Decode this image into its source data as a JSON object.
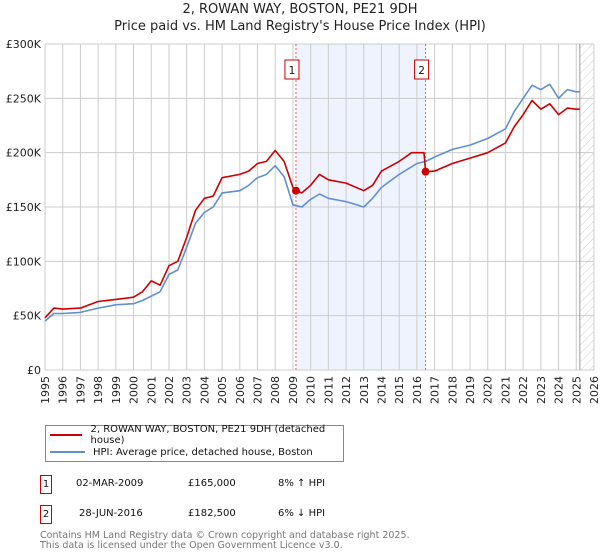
{
  "title_line1": "2, ROWAN WAY, BOSTON, PE21 9DH",
  "title_line2": "Price paid vs. HM Land Registry's House Price Index (HPI)",
  "colors": {
    "property": "#cc0000",
    "hpi": "#6090d0",
    "shade": "#eef3fd"
  },
  "legend": {
    "property": "2, ROWAN WAY, BOSTON, PE21 9DH (detached house)",
    "hpi": "HPI: Average price, detached house, Boston"
  },
  "annotations": [
    {
      "num": "1",
      "date": "02-MAR-2009",
      "price": "£165,000",
      "hpi": "8% ↑ HPI"
    },
    {
      "num": "2",
      "date": "28-JUN-2016",
      "price": "£182,500",
      "hpi": "6% ↓ HPI"
    }
  ],
  "footer": {
    "line1": "Contains HM Land Registry data © Crown copyright and database right 2025.",
    "line2": "This data is licensed under the Open Government Licence v3.0."
  },
  "chart_data": {
    "type": "line",
    "xlim": [
      1995,
      2026
    ],
    "ylim": [
      0,
      300000
    ],
    "yticks": [
      0,
      50000,
      100000,
      150000,
      200000,
      250000,
      300000
    ],
    "ytick_labels": [
      "£0",
      "£50K",
      "£100K",
      "£150K",
      "£200K",
      "£250K",
      "£300K"
    ],
    "xticks": [
      1995,
      1996,
      1997,
      1998,
      1999,
      2000,
      2001,
      2002,
      2003,
      2004,
      2005,
      2006,
      2007,
      2008,
      2009,
      2010,
      2011,
      2012,
      2013,
      2014,
      2015,
      2016,
      2017,
      2018,
      2019,
      2020,
      2021,
      2022,
      2023,
      2024,
      2025,
      2026
    ],
    "grid": true,
    "sales": [
      {
        "label": "1",
        "x": 2009.17,
        "y": 165000
      },
      {
        "label": "2",
        "x": 2016.49,
        "y": 182500
      }
    ],
    "forecast_hatch_from": 2025.2,
    "series": [
      {
        "name": "2, ROWAN WAY, BOSTON, PE21 9DH (detached house)",
        "color": "#cc0000",
        "x": [
          1995,
          1995.5,
          1996,
          1997,
          1998,
          1999,
          2000,
          2000.5,
          2001,
          2001.5,
          2002,
          2002.5,
          2003,
          2003.5,
          2004,
          2004.5,
          2005,
          2006,
          2006.5,
          2007,
          2007.5,
          2008,
          2008.5,
          2009,
          2009.17,
          2009.5,
          2010,
          2010.5,
          2011,
          2012,
          2013,
          2013.5,
          2014,
          2015,
          2015.7,
          2016.4,
          2016.49,
          2017,
          2018,
          2019,
          2020,
          2021,
          2021.5,
          2022,
          2022.5,
          2023,
          2023.5,
          2024,
          2024.5,
          2025,
          2025.2
        ],
        "y": [
          48000,
          57000,
          56000,
          57000,
          63000,
          65000,
          67000,
          72000,
          82000,
          78000,
          96000,
          100000,
          122000,
          147000,
          158000,
          160000,
          177000,
          180000,
          183000,
          190000,
          192000,
          202000,
          192000,
          168000,
          165000,
          163000,
          170000,
          180000,
          175000,
          172000,
          165000,
          170000,
          183000,
          192000,
          200000,
          200000,
          182500,
          183000,
          190000,
          195000,
          200000,
          209000,
          224000,
          235000,
          248000,
          240000,
          245000,
          235000,
          241000,
          240000,
          240000
        ]
      },
      {
        "name": "HPI: Average price, detached house, Boston",
        "color": "#6090d0",
        "x": [
          1995,
          1995.5,
          1996,
          1997,
          1998,
          1999,
          2000,
          2000.5,
          2001,
          2001.5,
          2002,
          2002.5,
          2003,
          2003.5,
          2004,
          2004.5,
          2005,
          2006,
          2006.5,
          2007,
          2007.5,
          2008,
          2008.5,
          2009,
          2009.5,
          2010,
          2010.5,
          2011,
          2012,
          2013,
          2013.5,
          2014,
          2015,
          2016,
          2016.5,
          2017,
          2018,
          2019,
          2020,
          2021,
          2021.5,
          2022,
          2022.5,
          2023,
          2023.5,
          2024,
          2024.5,
          2025,
          2025.2
        ],
        "y": [
          45000,
          52000,
          52000,
          53000,
          57000,
          60000,
          61000,
          64000,
          68000,
          72000,
          88000,
          92000,
          113000,
          135000,
          145000,
          150000,
          163000,
          165000,
          170000,
          177000,
          180000,
          188000,
          178000,
          152000,
          150000,
          157000,
          162000,
          158000,
          155000,
          150000,
          158000,
          168000,
          180000,
          190000,
          192000,
          196000,
          203000,
          207000,
          213000,
          222000,
          238000,
          250000,
          262000,
          258000,
          263000,
          250000,
          258000,
          256000,
          256000
        ]
      }
    ]
  }
}
